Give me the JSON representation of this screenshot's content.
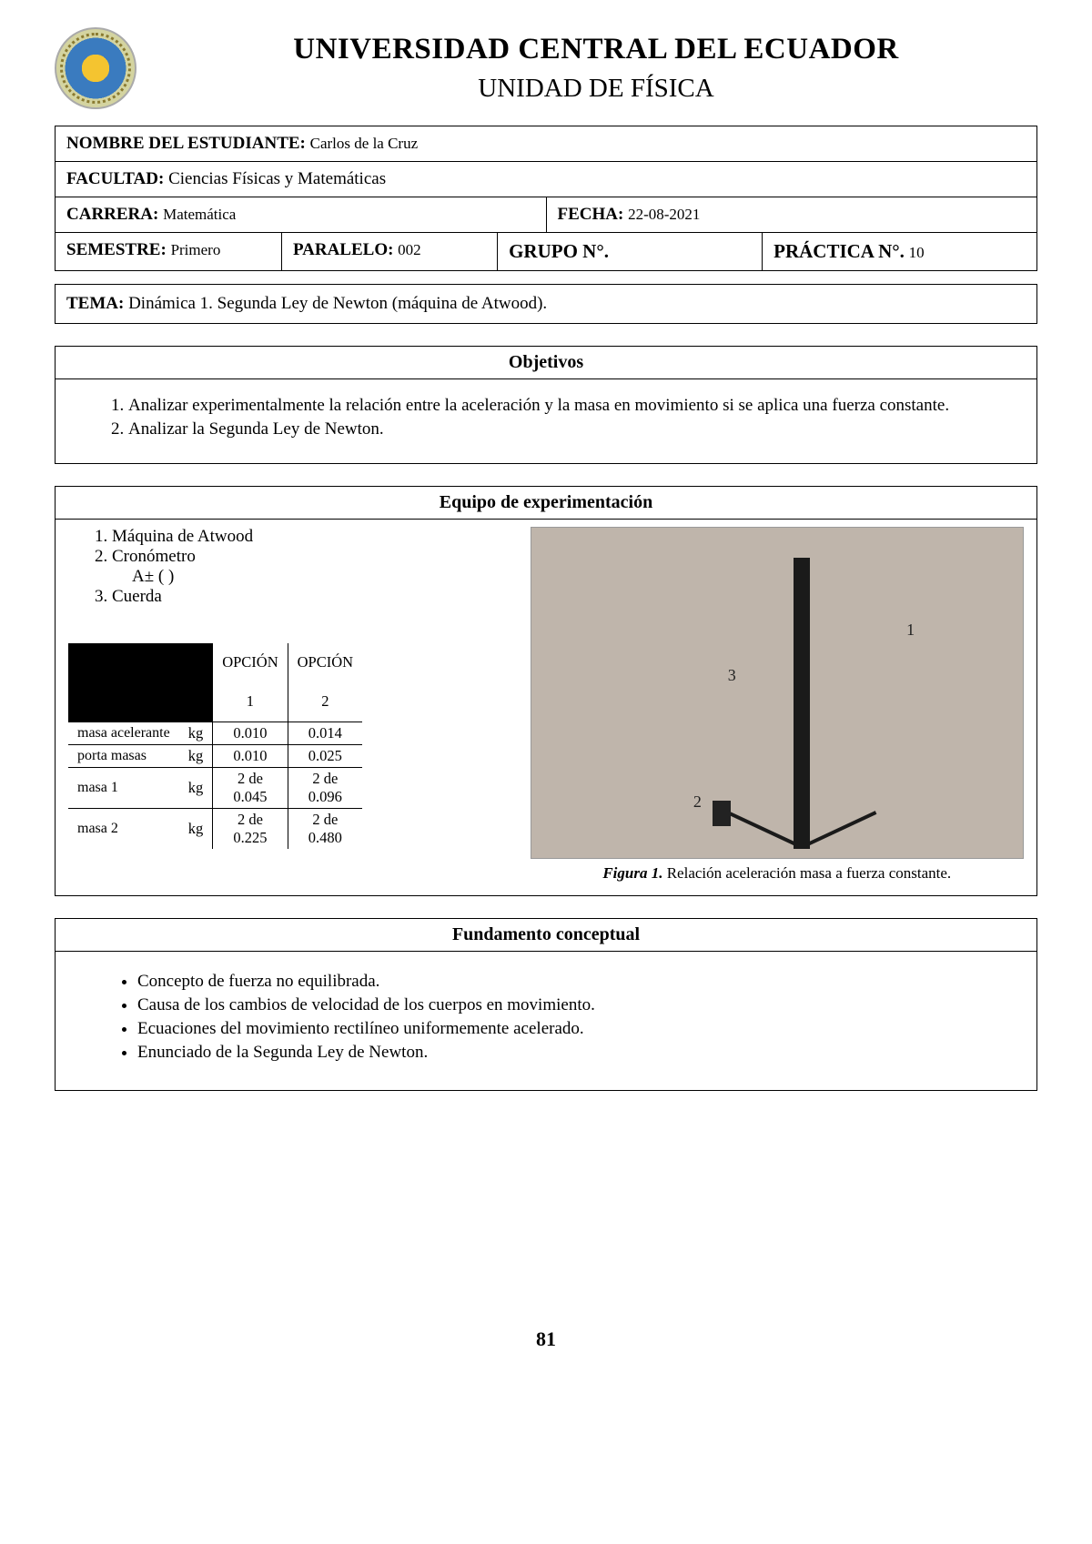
{
  "header": {
    "university": "UNIVERSIDAD CENTRAL DEL ECUADOR",
    "department": "UNIDAD DE FÍSICA"
  },
  "info": {
    "student_label": "NOMBRE DEL ESTUDIANTE:",
    "student_value": "Carlos de la Cruz",
    "faculty_label": "FACULTAD:",
    "faculty_value": "Ciencias Físicas y Matemáticas",
    "career_label": "CARRERA:",
    "career_value": "Matemática",
    "date_label": "FECHA:",
    "date_value": "22-08-2021",
    "semester_label": "SEMESTRE:",
    "semester_value": "Primero",
    "parallel_label": "PARALELO:",
    "parallel_value": "002",
    "group_label": "GRUPO N°.",
    "group_value": "",
    "practice_label": "PRÁCTICA N°.",
    "practice_value": "10"
  },
  "theme": {
    "label": "TEMA:",
    "value": "Dinámica 1. Segunda Ley de Newton (máquina de Atwood)."
  },
  "objectives": {
    "title": "Objetivos",
    "items": [
      "Analizar experimentalmente la relación entre la aceleración y la masa en movimiento si se aplica una fuerza constante.",
      "Analizar la Segunda Ley de Newton."
    ]
  },
  "equipment": {
    "title": "Equipo de experimentación",
    "items": [
      "Máquina de Atwood",
      "Cronómetro",
      "Cuerda"
    ],
    "tolerance": "A±            (    )",
    "figure_caption_bold": "Figura 1.",
    "figure_caption_rest": " Relación aceleración masa a fuerza constante.",
    "figure_labels": {
      "one": "1",
      "two": "2",
      "three": "3"
    },
    "table": {
      "option_label": "OPCIÓN",
      "opt1": "1",
      "opt2": "2",
      "unit": "kg",
      "rows": [
        {
          "label": "masa acelerante",
          "opt1": "0.010",
          "opt2": "0.014"
        },
        {
          "label": "porta masas",
          "opt1": "0.010",
          "opt2": "0.025"
        },
        {
          "label": "masa 1",
          "opt1": "2 de 0.045",
          "opt2": "2 de 0.096"
        },
        {
          "label": "masa 2",
          "opt1": "2 de 0.225",
          "opt2": "2 de 0.480"
        }
      ]
    }
  },
  "fundamentals": {
    "title": "Fundamento conceptual",
    "items": [
      "Concepto de fuerza no equilibrada.",
      "Causa de los cambios de velocidad de los cuerpos en movimiento.",
      "Ecuaciones del movimiento rectilíneo uniformemente acelerado.",
      "Enunciado de la Segunda Ley de Newton."
    ]
  },
  "page_number": "81"
}
